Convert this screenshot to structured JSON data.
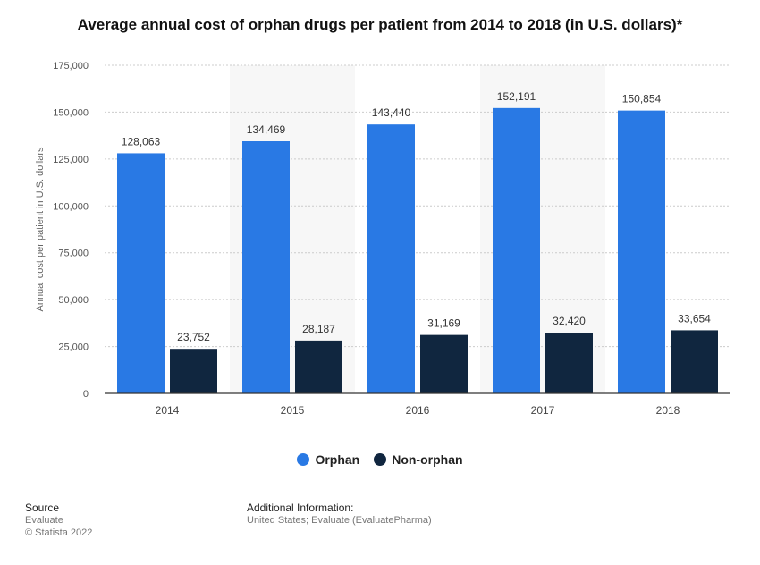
{
  "title": "Average annual cost of orphan drugs per patient from 2014 to 2018 (in U.S. dollars)*",
  "colors": {
    "orphan": "#2979e4",
    "non_orphan": "#10263f",
    "band": "#f7f7f7",
    "grid": "#cccccc"
  },
  "chart_data": {
    "type": "bar",
    "title": "Average annual cost of orphan drugs per patient from 2014 to 2018 (in U.S. dollars)*",
    "categories": [
      "2014",
      "2015",
      "2016",
      "2017",
      "2018"
    ],
    "series": [
      {
        "name": "Orphan",
        "values": [
          128063,
          134469,
          143440,
          152191,
          150854
        ]
      },
      {
        "name": "Non-orphan",
        "values": [
          23752,
          28187,
          31169,
          32420,
          33654
        ]
      }
    ],
    "value_labels": [
      [
        "128,063",
        "134,469",
        "143,440",
        "152,191",
        "150,854"
      ],
      [
        "23,752",
        "28,187",
        "31,169",
        "32,420",
        "33,654"
      ]
    ],
    "ylabel": "Annual cost per patient in U.S. dollars",
    "xlabel": "",
    "ylim": [
      0,
      175000
    ],
    "yticks": [
      0,
      25000,
      50000,
      75000,
      100000,
      125000,
      150000,
      175000
    ],
    "ytick_labels": [
      "0",
      "25,000",
      "50,000",
      "75,000",
      "100,000",
      "125,000",
      "150,000",
      "175,000"
    ],
    "grid": true,
    "legend_position": "bottom"
  },
  "legend": {
    "orphan": "Orphan",
    "non_orphan": "Non-orphan"
  },
  "footer": {
    "source_heading": "Source",
    "source_name": "Evaluate",
    "copyright": "© Statista 2022",
    "additional_heading": "Additional Information:",
    "additional_text": "United States; Evaluate (EvaluatePharma)"
  }
}
